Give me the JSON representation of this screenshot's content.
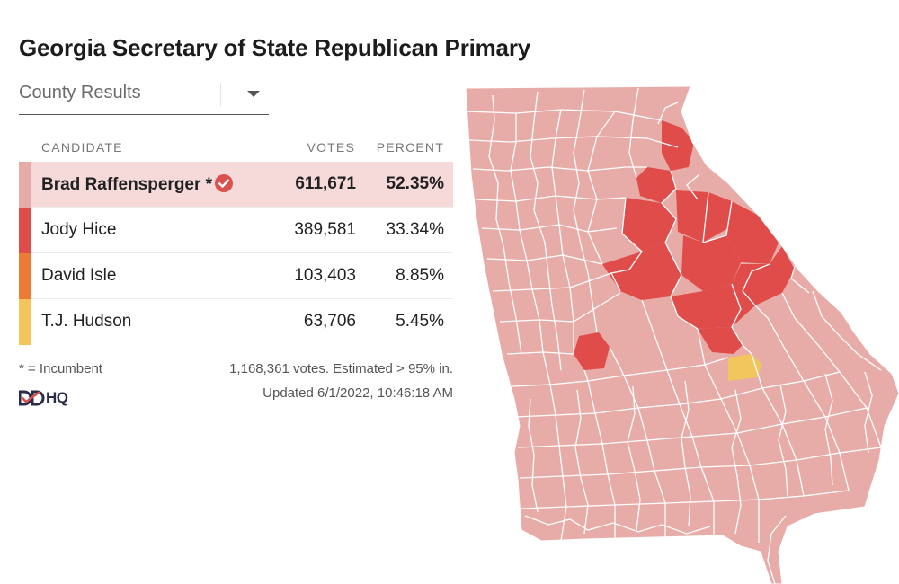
{
  "title": "Georgia Secretary of State Republican Primary",
  "dropdown": {
    "selected": "County Results"
  },
  "table": {
    "headers": {
      "candidate": "CANDIDATE",
      "votes": "VOTES",
      "percent": "PERCENT"
    },
    "rows": [
      {
        "name": "Brad Raffensperger *",
        "votes": "611,671",
        "percent": "52.35%",
        "color": "#e8aca8",
        "winner": true
      },
      {
        "name": "Jody Hice",
        "votes": "389,581",
        "percent": "33.34%",
        "color": "#df4c49"
      },
      {
        "name": "David Isle",
        "votes": "103,403",
        "percent": "8.85%",
        "color": "#ee7a35"
      },
      {
        "name": "T.J. Hudson",
        "votes": "63,706",
        "percent": "5.45%",
        "color": "#f2c65c"
      }
    ]
  },
  "footer": {
    "incumbent_note": "* = Incumbent",
    "summary": "1,168,361 votes. Estimated > 95% in.",
    "updated": "Updated 6/1/2022, 10:46:18 AM",
    "logo": "HQ"
  },
  "map": {
    "colors": {
      "raffensperger": "#e8aca8",
      "hice": "#df4c49",
      "hudson": "#f2c65c",
      "border": "#ffffff"
    }
  }
}
